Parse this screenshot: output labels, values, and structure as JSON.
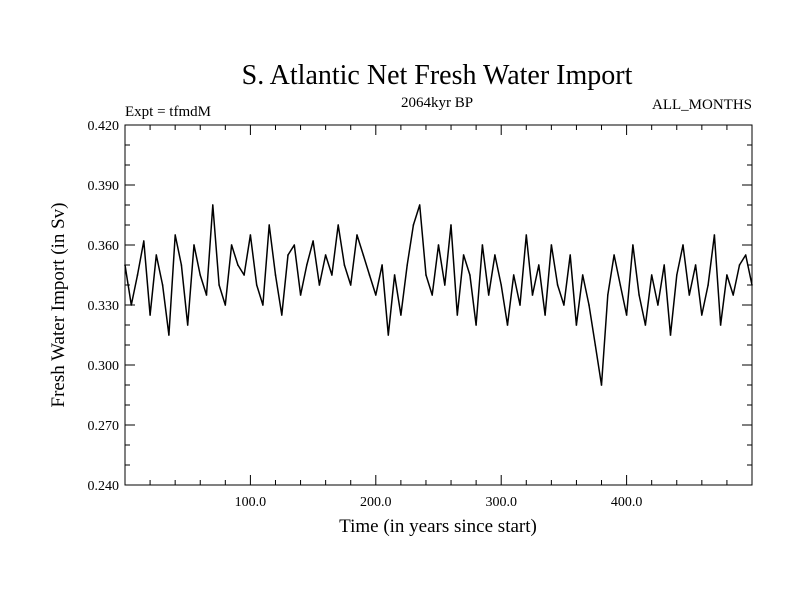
{
  "chart_data": {
    "type": "line",
    "title": "S. Atlantic Net Fresh Water Import",
    "subtitle": "2064kyr BP",
    "left_label": "Expt = tfmdM",
    "right_label": "ALL_MONTHS",
    "xlabel": "Time (in years since start)",
    "ylabel": "Fresh Water Import (in Sv)",
    "xlim": [
      0,
      500
    ],
    "ylim": [
      0.24,
      0.42
    ],
    "xticks": [
      100,
      200,
      300,
      400
    ],
    "xtick_labels": [
      "100.0",
      "200.0",
      "300.0",
      "400.0"
    ],
    "yticks": [
      0.24,
      0.27,
      0.3,
      0.33,
      0.36,
      0.39,
      0.42
    ],
    "ytick_labels": [
      "0.240",
      "0.270",
      "0.300",
      "0.330",
      "0.360",
      "0.390",
      "0.420"
    ],
    "series": [
      {
        "name": "Net Fresh Water Import",
        "color": "#000000",
        "x": [
          0,
          5,
          10,
          15,
          20,
          25,
          30,
          35,
          40,
          45,
          50,
          55,
          60,
          65,
          70,
          75,
          80,
          85,
          90,
          95,
          100,
          105,
          110,
          115,
          120,
          125,
          130,
          135,
          140,
          145,
          150,
          155,
          160,
          165,
          170,
          175,
          180,
          185,
          190,
          195,
          200,
          205,
          210,
          215,
          220,
          225,
          230,
          235,
          240,
          245,
          250,
          255,
          260,
          265,
          270,
          275,
          280,
          285,
          290,
          295,
          300,
          305,
          310,
          315,
          320,
          325,
          330,
          335,
          340,
          345,
          350,
          355,
          360,
          365,
          370,
          375,
          380,
          385,
          390,
          395,
          400,
          405,
          410,
          415,
          420,
          425,
          430,
          435,
          440,
          445,
          450,
          455,
          460,
          465,
          470,
          475,
          480,
          485,
          490,
          495,
          500
        ],
        "values": [
          0.35,
          0.33,
          0.345,
          0.362,
          0.325,
          0.355,
          0.34,
          0.315,
          0.365,
          0.35,
          0.32,
          0.36,
          0.345,
          0.335,
          0.38,
          0.34,
          0.33,
          0.36,
          0.35,
          0.345,
          0.365,
          0.34,
          0.33,
          0.37,
          0.345,
          0.325,
          0.355,
          0.36,
          0.335,
          0.35,
          0.362,
          0.34,
          0.355,
          0.345,
          0.37,
          0.35,
          0.34,
          0.365,
          0.355,
          0.345,
          0.335,
          0.35,
          0.315,
          0.345,
          0.325,
          0.35,
          0.37,
          0.38,
          0.345,
          0.335,
          0.36,
          0.34,
          0.37,
          0.325,
          0.355,
          0.345,
          0.32,
          0.36,
          0.335,
          0.355,
          0.34,
          0.32,
          0.345,
          0.33,
          0.365,
          0.335,
          0.35,
          0.325,
          0.36,
          0.34,
          0.33,
          0.355,
          0.32,
          0.345,
          0.33,
          0.31,
          0.29,
          0.335,
          0.355,
          0.34,
          0.325,
          0.36,
          0.335,
          0.32,
          0.345,
          0.33,
          0.35,
          0.315,
          0.345,
          0.36,
          0.335,
          0.35,
          0.325,
          0.34,
          0.365,
          0.32,
          0.345,
          0.335,
          0.35,
          0.355,
          0.34
        ]
      }
    ]
  }
}
